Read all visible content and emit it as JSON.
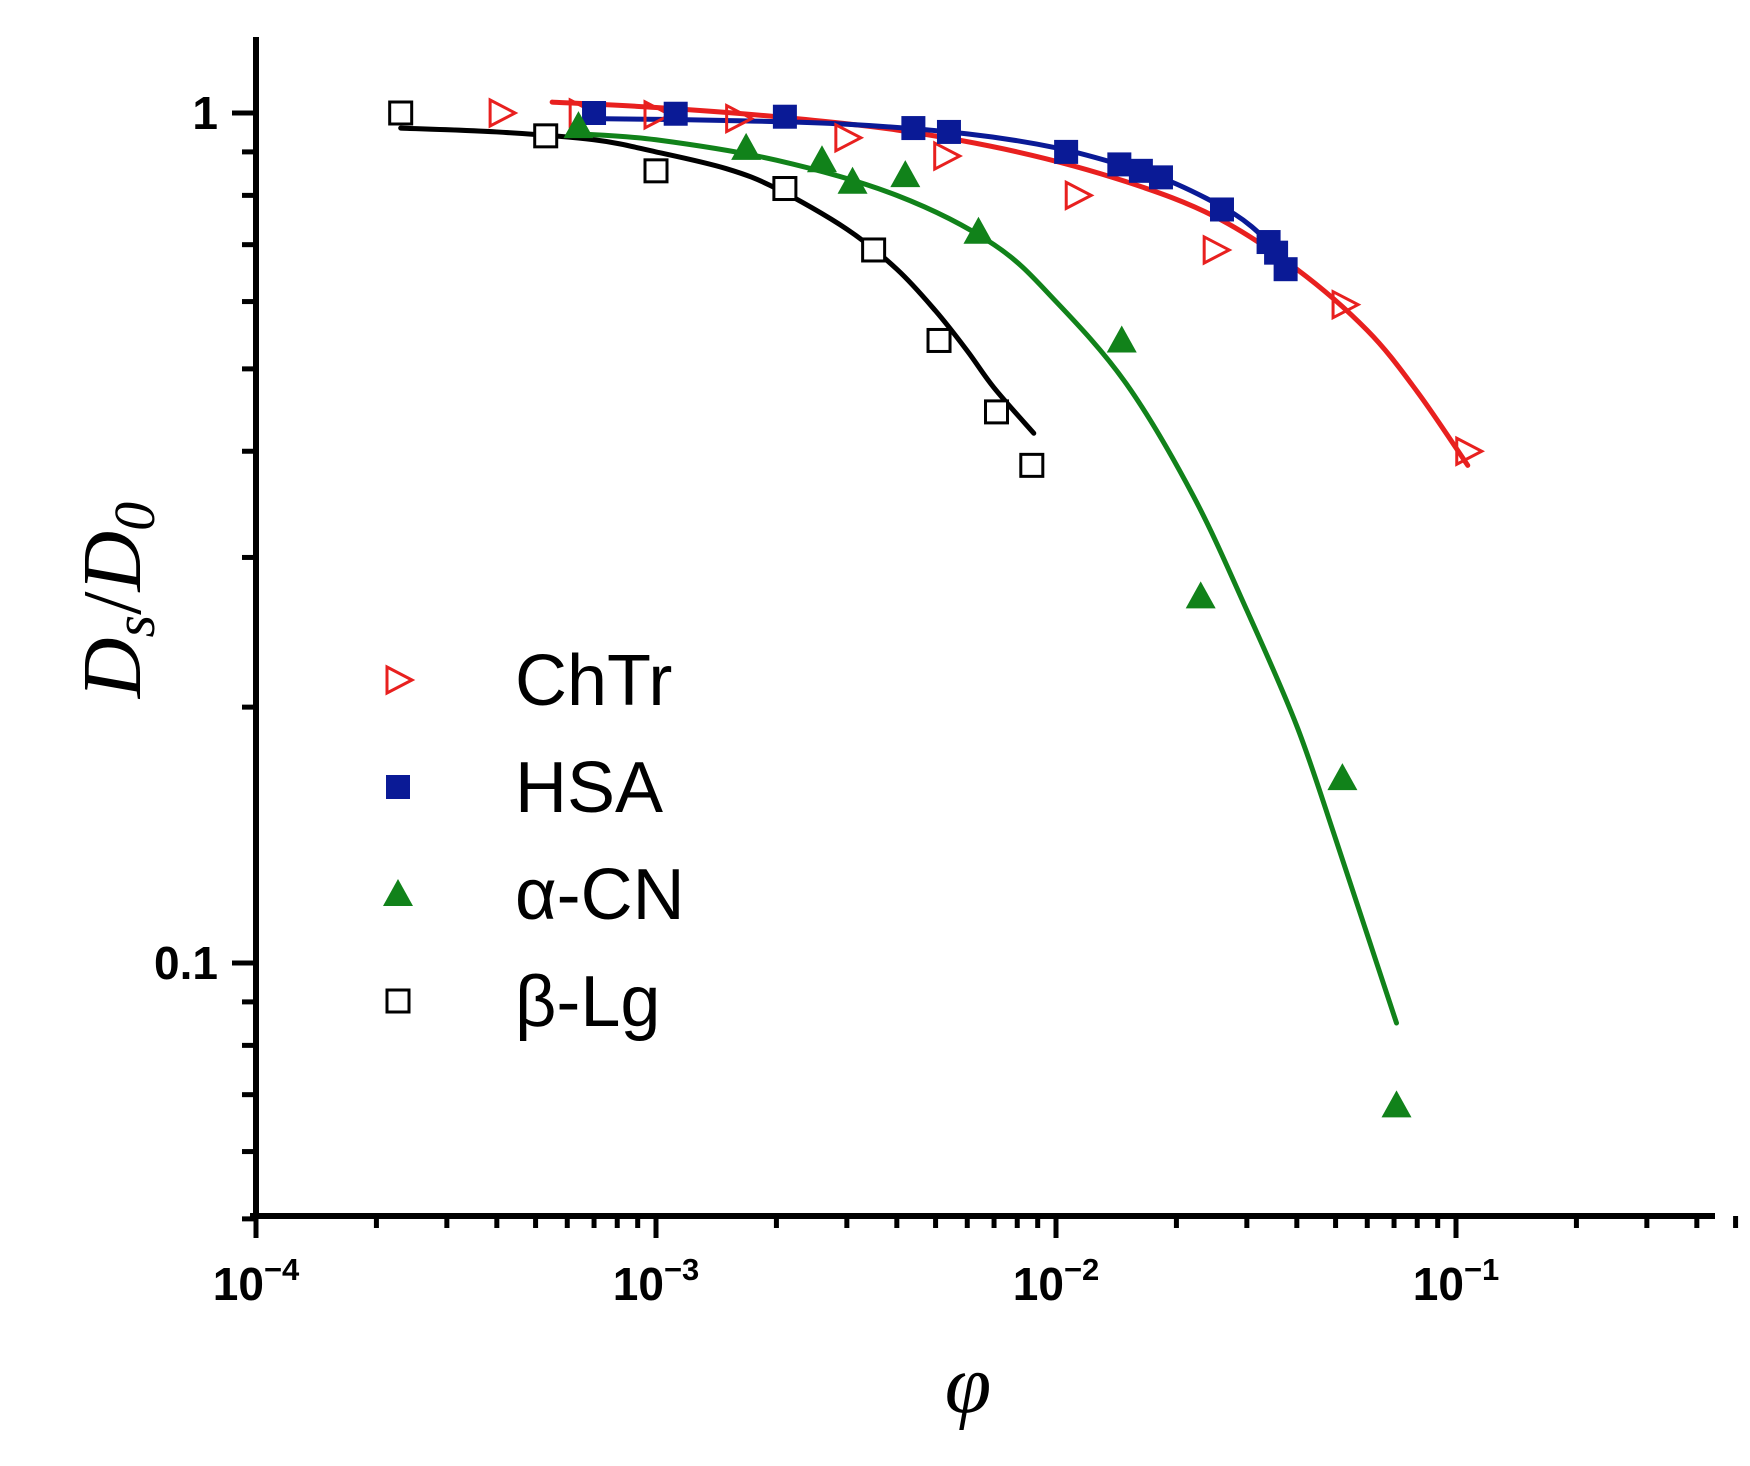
{
  "chart_data": {
    "type": "scatter",
    "x_scale": "log",
    "y_scale": "log",
    "xlim": [
      0.0001,
      0.5
    ],
    "ylim": [
      0.05,
      1.25
    ],
    "grid": false,
    "legend_position": "left-center",
    "title": "",
    "xlabel": "φ",
    "ylabel": {
      "main": "D",
      "sub1": "s",
      "slash": "/",
      "main2": "D",
      "sub2": "0"
    },
    "x_ticks": [
      {
        "value": 0.0001,
        "base": "10",
        "exp": "−4"
      },
      {
        "value": 0.001,
        "base": "10",
        "exp": "−3"
      },
      {
        "value": 0.01,
        "base": "10",
        "exp": "−2"
      },
      {
        "value": 0.1,
        "base": "10",
        "exp": "−1"
      }
    ],
    "y_ticks": [
      {
        "value": 1,
        "label": "1"
      },
      {
        "value": 0.1,
        "label": "0.1"
      }
    ],
    "series": [
      {
        "name": "ChTr",
        "color": "#e8201f",
        "marker": "triangle-right-open",
        "points": [
          [
            0.00041,
            1.0
          ],
          [
            0.00065,
            1.0
          ],
          [
            0.001,
            0.995
          ],
          [
            0.0016,
            0.985
          ],
          [
            0.003,
            0.935
          ],
          [
            0.0053,
            0.89
          ],
          [
            0.0113,
            0.8
          ],
          [
            0.025,
            0.69
          ],
          [
            0.0525,
            0.595
          ],
          [
            0.107,
            0.4
          ]
        ],
        "fit": [
          [
            0.00055,
            1.03
          ],
          [
            0.001,
            1.015
          ],
          [
            0.002,
            0.99
          ],
          [
            0.004,
            0.955
          ],
          [
            0.008,
            0.9
          ],
          [
            0.015,
            0.83
          ],
          [
            0.025,
            0.755
          ],
          [
            0.04,
            0.655
          ],
          [
            0.06,
            0.555
          ],
          [
            0.08,
            0.47
          ],
          [
            0.107,
            0.385
          ]
        ]
      },
      {
        "name": "HSA",
        "color": "#0a1a96",
        "marker": "square-filled",
        "points": [
          [
            0.0007,
            1.0
          ],
          [
            0.00112,
            0.998
          ],
          [
            0.0021,
            0.99
          ],
          [
            0.0044,
            0.96
          ],
          [
            0.0054,
            0.95
          ],
          [
            0.0106,
            0.9
          ],
          [
            0.0144,
            0.87
          ],
          [
            0.0163,
            0.855
          ],
          [
            0.0183,
            0.84
          ],
          [
            0.026,
            0.77
          ],
          [
            0.034,
            0.705
          ],
          [
            0.0355,
            0.685
          ],
          [
            0.0375,
            0.655
          ]
        ],
        "fit": [
          [
            0.0007,
            0.985
          ],
          [
            0.0015,
            0.98
          ],
          [
            0.003,
            0.97
          ],
          [
            0.006,
            0.945
          ],
          [
            0.01,
            0.91
          ],
          [
            0.015,
            0.865
          ],
          [
            0.02,
            0.825
          ],
          [
            0.028,
            0.76
          ],
          [
            0.034,
            0.705
          ],
          [
            0.0375,
            0.67
          ]
        ]
      },
      {
        "name": "α-CN",
        "color": "#11821a",
        "marker": "triangle-up-filled",
        "points": [
          [
            0.00064,
            0.965
          ],
          [
            0.00168,
            0.91
          ],
          [
            0.0026,
            0.88
          ],
          [
            0.0031,
            0.83
          ],
          [
            0.0042,
            0.845
          ],
          [
            0.0064,
            0.725
          ],
          [
            0.0146,
            0.54
          ],
          [
            0.023,
            0.27
          ],
          [
            0.052,
            0.165
          ],
          [
            0.071,
            0.068
          ]
        ],
        "fit": [
          [
            0.00064,
            0.945
          ],
          [
            0.001,
            0.93
          ],
          [
            0.002,
            0.88
          ],
          [
            0.004,
            0.8
          ],
          [
            0.007,
            0.7
          ],
          [
            0.01,
            0.6
          ],
          [
            0.015,
            0.48
          ],
          [
            0.022,
            0.355
          ],
          [
            0.03,
            0.26
          ],
          [
            0.04,
            0.19
          ],
          [
            0.05,
            0.14
          ],
          [
            0.06,
            0.108
          ],
          [
            0.071,
            0.085
          ]
        ]
      },
      {
        "name": "β-Lg",
        "color": "#000000",
        "marker": "square-open",
        "points": [
          [
            0.00023,
            1.0
          ],
          [
            0.00053,
            0.94
          ],
          [
            0.001,
            0.855
          ],
          [
            0.0021,
            0.815
          ],
          [
            0.0035,
            0.69
          ],
          [
            0.0051,
            0.54
          ],
          [
            0.0071,
            0.445
          ],
          [
            0.0087,
            0.385
          ]
        ],
        "fit": [
          [
            0.00023,
            0.96
          ],
          [
            0.0004,
            0.95
          ],
          [
            0.0007,
            0.93
          ],
          [
            0.001,
            0.9
          ],
          [
            0.0015,
            0.86
          ],
          [
            0.002,
            0.815
          ],
          [
            0.003,
            0.73
          ],
          [
            0.004,
            0.655
          ],
          [
            0.005,
            0.585
          ],
          [
            0.006,
            0.525
          ],
          [
            0.007,
            0.475
          ],
          [
            0.0088,
            0.42
          ]
        ]
      }
    ]
  }
}
